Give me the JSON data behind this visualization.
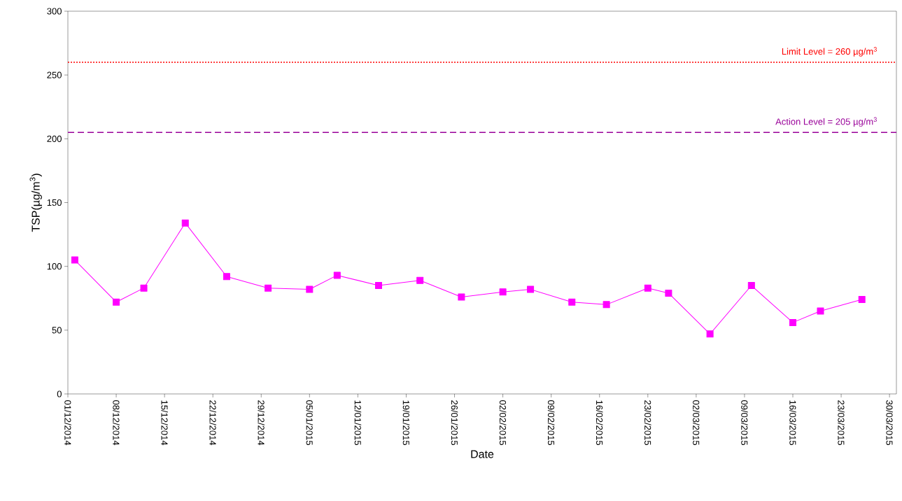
{
  "chart_data": {
    "type": "line",
    "xlabel": "Date",
    "ylabel": "TSP(µg/m$^{3}$)",
    "x": [
      "2014-12-02",
      "2014-12-08",
      "2014-12-12",
      "2014-12-18",
      "2014-12-24",
      "2014-12-30",
      "2015-01-05",
      "2015-01-09",
      "2015-01-15",
      "2015-01-21",
      "2015-01-27",
      "2015-02-02",
      "2015-02-06",
      "2015-02-12",
      "2015-02-17",
      "2015-02-23",
      "2015-02-26",
      "2015-03-04",
      "2015-03-10",
      "2015-03-16",
      "2015-03-20",
      "2015-03-26"
    ],
    "series": [
      {
        "color": "#ff00ff",
        "values": [
          105,
          72,
          83,
          134,
          92,
          83,
          82,
          93,
          85,
          89,
          76,
          80,
          82,
          72,
          70,
          83,
          79,
          47,
          85,
          56,
          65,
          74
        ]
      }
    ],
    "marker": "square",
    "line_style": "solid",
    "grid": false,
    "xlim": [
      "2014-12-01",
      "2015-03-31"
    ],
    "xticks": [
      {
        "value": "2014-12-01",
        "label": "01/12/2014"
      },
      {
        "value": "2014-12-08",
        "label": "08/12/2014"
      },
      {
        "value": "2014-12-15",
        "label": "15/12/2014"
      },
      {
        "value": "2014-12-22",
        "label": "22/12/2014"
      },
      {
        "value": "2014-12-29",
        "label": "29/12/2014"
      },
      {
        "value": "2015-01-05",
        "label": "05/01/2015"
      },
      {
        "value": "2015-01-12",
        "label": "12/01/2015"
      },
      {
        "value": "2015-01-19",
        "label": "19/01/2015"
      },
      {
        "value": "2015-01-26",
        "label": "26/01/2015"
      },
      {
        "value": "2015-02-02",
        "label": "02/02/2015"
      },
      {
        "value": "2015-02-09",
        "label": "09/02/2015"
      },
      {
        "value": "2015-02-16",
        "label": "16/02/2015"
      },
      {
        "value": "2015-02-23",
        "label": "23/02/2015"
      },
      {
        "value": "2015-03-02",
        "label": "02/03/2015"
      },
      {
        "value": "2015-03-09",
        "label": "09/03/2015"
      },
      {
        "value": "2015-03-16",
        "label": "16/03/2015"
      },
      {
        "value": "2015-03-23",
        "label": "23/03/2015"
      },
      {
        "value": "2015-03-30",
        "label": "30/03/2015"
      }
    ],
    "ylim": [
      0,
      300
    ],
    "yticks": [
      0,
      50,
      100,
      150,
      200,
      250,
      300
    ],
    "ref_lines": [
      {
        "axis": "y",
        "value": 260,
        "label": "Limit Level = 260 µg/m$^{3}$",
        "color": "#ff0000",
        "line_style": "dotted"
      },
      {
        "axis": "y",
        "value": 205,
        "label": "Action Level = 205 µg/m$^{3}$",
        "color": "#990099",
        "line_style": "dashed"
      }
    ]
  }
}
